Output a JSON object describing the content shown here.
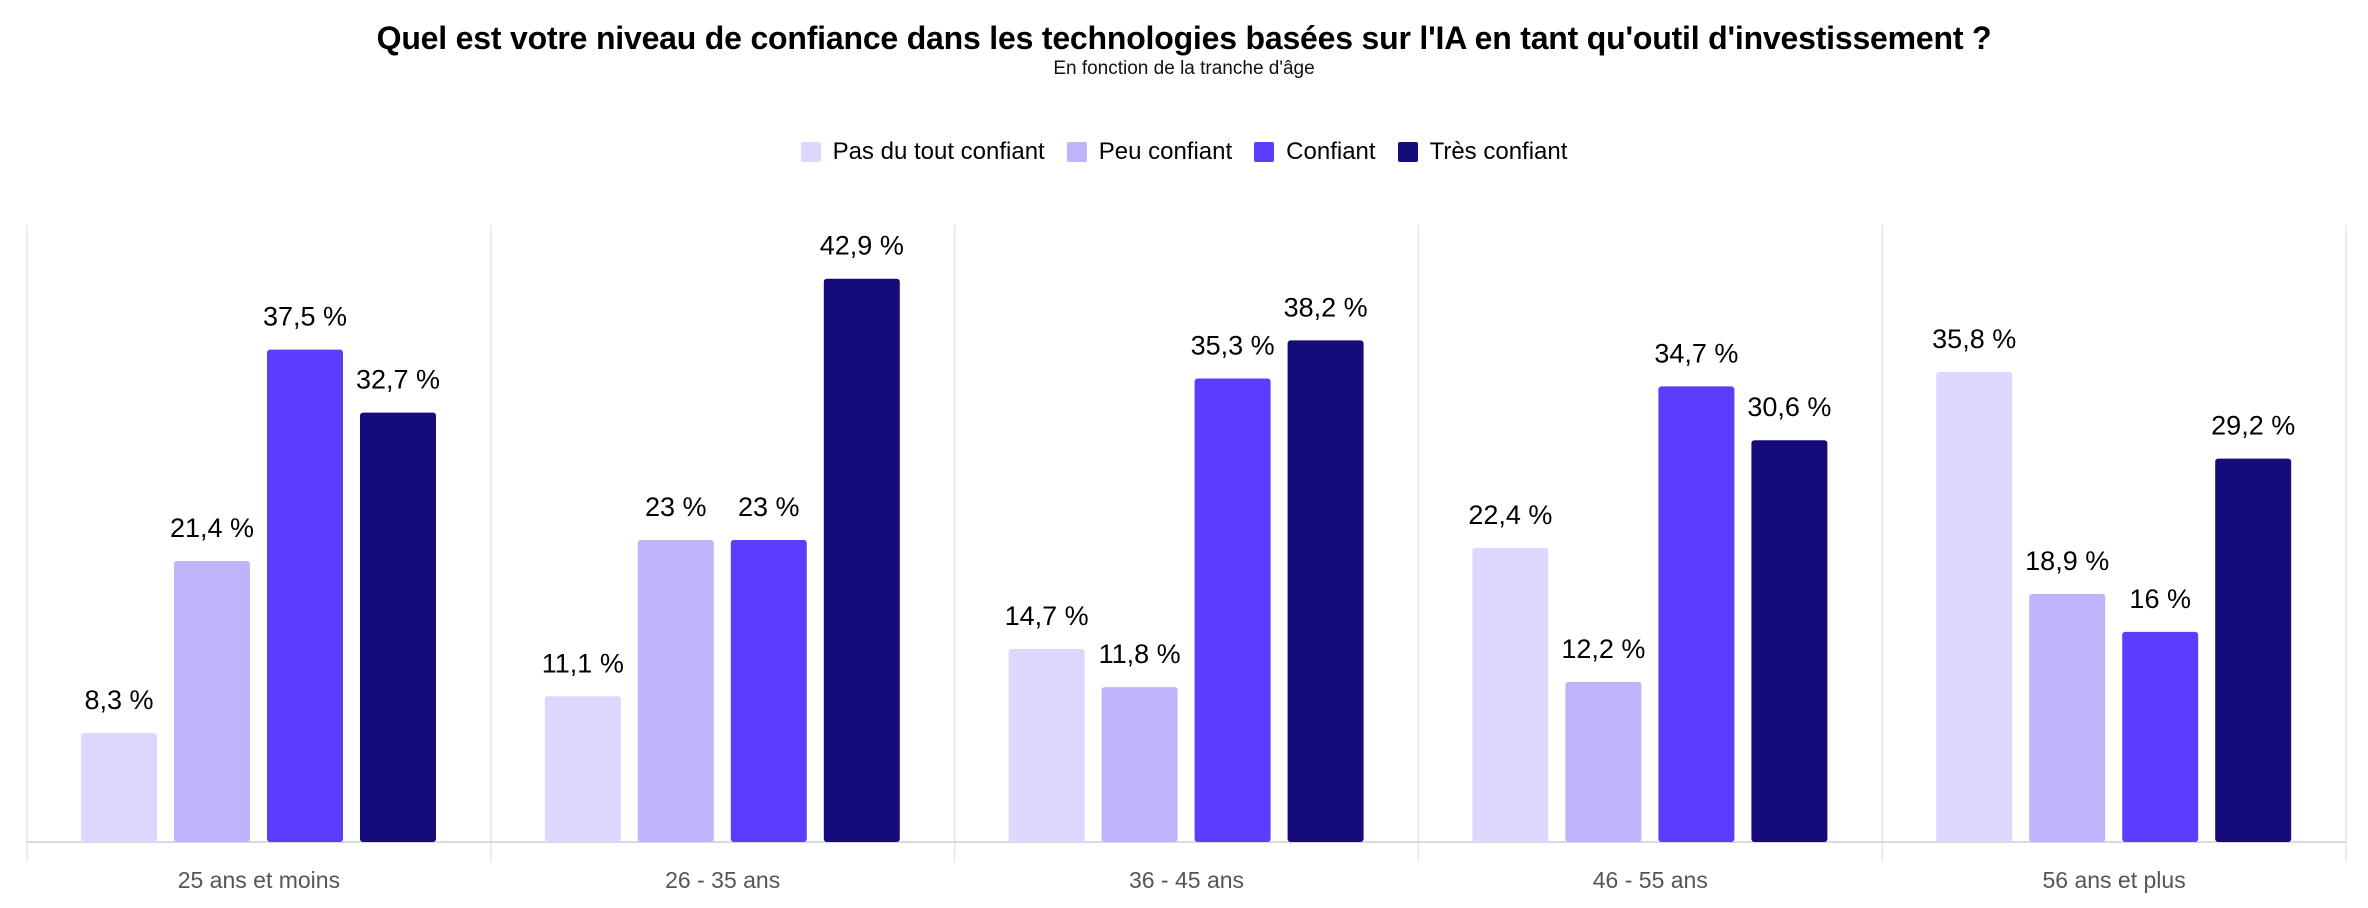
{
  "chart_data": {
    "type": "bar",
    "title": "Quel est votre niveau de confiance dans les technologies basées sur l'IA en tant qu'outil d'investissement ?",
    "subtitle": "En fonction de la tranche d'âge",
    "legend_position": "top-center",
    "grid": false,
    "ylim": [
      0,
      45
    ],
    "categories": [
      "25 ans et moins",
      "26 - 35 ans",
      "36 - 45 ans",
      "46 - 55 ans",
      "56 ans et plus"
    ],
    "series": [
      {
        "name": "Pas du tout confiant",
        "color": "#dcd8fd",
        "values": [
          8.3,
          11.1,
          14.7,
          22.4,
          35.8
        ],
        "labels": [
          "8,3 %",
          "11,1 %",
          "14,7 %",
          "22,4 %",
          "35,8 %"
        ]
      },
      {
        "name": "Peu confiant",
        "color": "#bdb4fc",
        "values": [
          21.4,
          23,
          11.8,
          12.2,
          18.9
        ],
        "labels": [
          "21,4 %",
          "23 %",
          "11,8 %",
          "12,2 %",
          "18,9 %"
        ]
      },
      {
        "name": "Confiant",
        "color": "#5a3dfd",
        "values": [
          37.5,
          23,
          35.3,
          34.7,
          16
        ],
        "labels": [
          "37,5 %",
          "23 %",
          "35,3 %",
          "34,7 %",
          "16 %"
        ]
      },
      {
        "name": "Très confiant",
        "color": "#150b7b",
        "values": [
          32.7,
          42.9,
          38.2,
          30.6,
          29.2
        ],
        "labels": [
          "32,7 %",
          "42,9 %",
          "38,2 %",
          "30,6 %",
          "29,2 %"
        ]
      }
    ]
  }
}
